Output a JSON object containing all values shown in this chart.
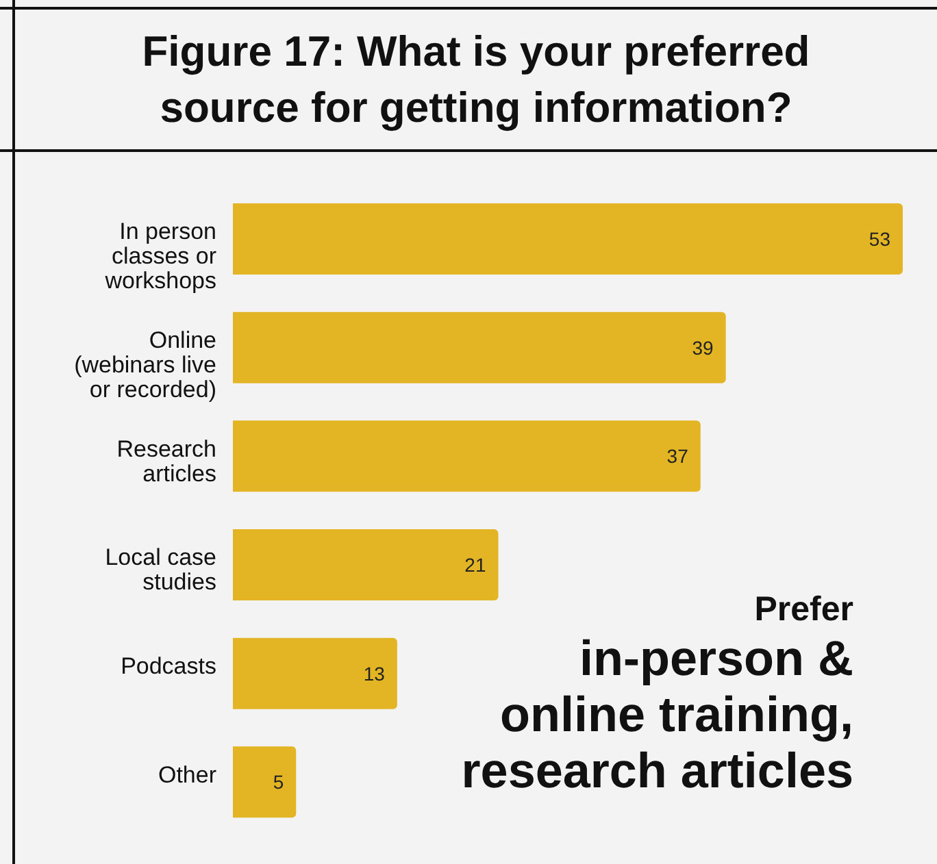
{
  "chart_data": {
    "type": "bar",
    "orientation": "horizontal",
    "title": "Figure 17: What is your preferred source for getting information?",
    "categories": [
      "In person classes or workshops",
      "Online (webinars live or recorded)",
      "Research articles",
      "Local case studies",
      "Podcasts",
      "Other"
    ],
    "values": [
      53,
      39,
      37,
      21,
      13,
      5
    ],
    "color": "#e3b524",
    "data_labels": true,
    "annotations": [
      "Prefer",
      "in-person & online training, research articles"
    ]
  }
}
